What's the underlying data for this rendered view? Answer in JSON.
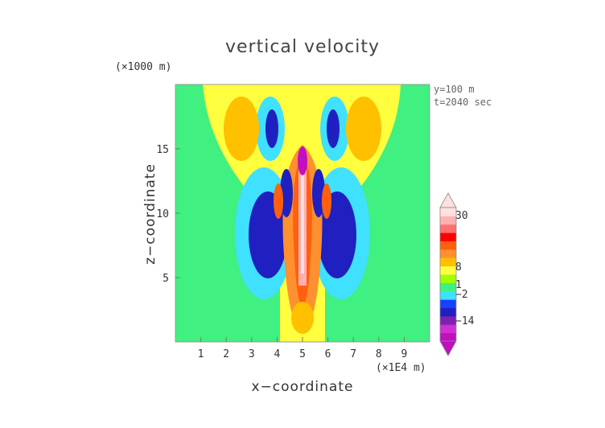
{
  "chart_data": {
    "type": "heatmap",
    "title": "vertical velocity",
    "xlabel": "x−coordinate",
    "ylabel": "z−coordinate",
    "x_unit": "(×1E4 m)",
    "y_unit": "(×1000 m)",
    "xlim": [
      0,
      10
    ],
    "ylim": [
      0,
      20
    ],
    "x_ticks": [
      "1",
      "2",
      "3",
      "4",
      "5",
      "6",
      "7",
      "8",
      "9"
    ],
    "y_ticks": [
      "5",
      "10",
      "15"
    ],
    "annotations": [
      "y=100 m",
      "t=2040 sec"
    ],
    "colorbar": {
      "labels": [
        "30",
        "8",
        "1",
        "−2",
        "−14"
      ],
      "colors": [
        "#c010c0",
        "#d030d0",
        "#8020b0",
        "#2020c0",
        "#1840ff",
        "#40e0ff",
        "#40f080",
        "#a0ff00",
        "#ffff40",
        "#ffc000",
        "#ff9030",
        "#ff6010",
        "#ff0000",
        "#ff7070",
        "#ffb0b0",
        "#ffe0e0"
      ]
    },
    "grid": false
  }
}
